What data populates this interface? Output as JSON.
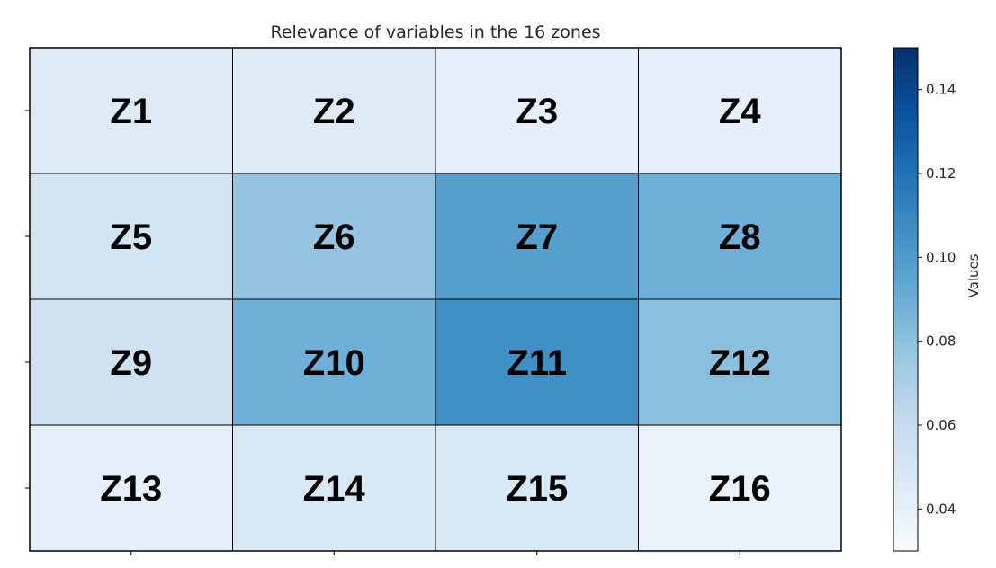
{
  "chart_data": {
    "type": "heatmap",
    "title": "Relevance of variables in the 16 zones",
    "rows": 4,
    "cols": 4,
    "cells": [
      {
        "label": "Z1",
        "value": 0.045
      },
      {
        "label": "Z2",
        "value": 0.045
      },
      {
        "label": "Z3",
        "value": 0.04
      },
      {
        "label": "Z4",
        "value": 0.04
      },
      {
        "label": "Z5",
        "value": 0.052
      },
      {
        "label": "Z6",
        "value": 0.078
      },
      {
        "label": "Z7",
        "value": 0.098
      },
      {
        "label": "Z8",
        "value": 0.089
      },
      {
        "label": "Z9",
        "value": 0.054
      },
      {
        "label": "Z10",
        "value": 0.089
      },
      {
        "label": "Z11",
        "value": 0.106
      },
      {
        "label": "Z12",
        "value": 0.081
      },
      {
        "label": "Z13",
        "value": 0.04
      },
      {
        "label": "Z14",
        "value": 0.048
      },
      {
        "label": "Z15",
        "value": 0.048
      },
      {
        "label": "Z16",
        "value": 0.038
      }
    ],
    "colorbar": {
      "label": "Values",
      "range": [
        0.03,
        0.15
      ],
      "ticks": [
        0.04,
        0.06,
        0.08,
        0.1,
        0.12,
        0.14
      ],
      "tick_labels": [
        "0.04",
        "0.06",
        "0.08",
        "0.10",
        "0.12",
        "0.14"
      ],
      "colormap": "Blues",
      "stops": [
        "#f7fbff",
        "#deebf7",
        "#c6dbef",
        "#9ecae1",
        "#6baed6",
        "#4292c6",
        "#2171b5",
        "#08519c",
        "#08306b"
      ]
    },
    "grid": true,
    "show_axis_tick_labels": false
  }
}
